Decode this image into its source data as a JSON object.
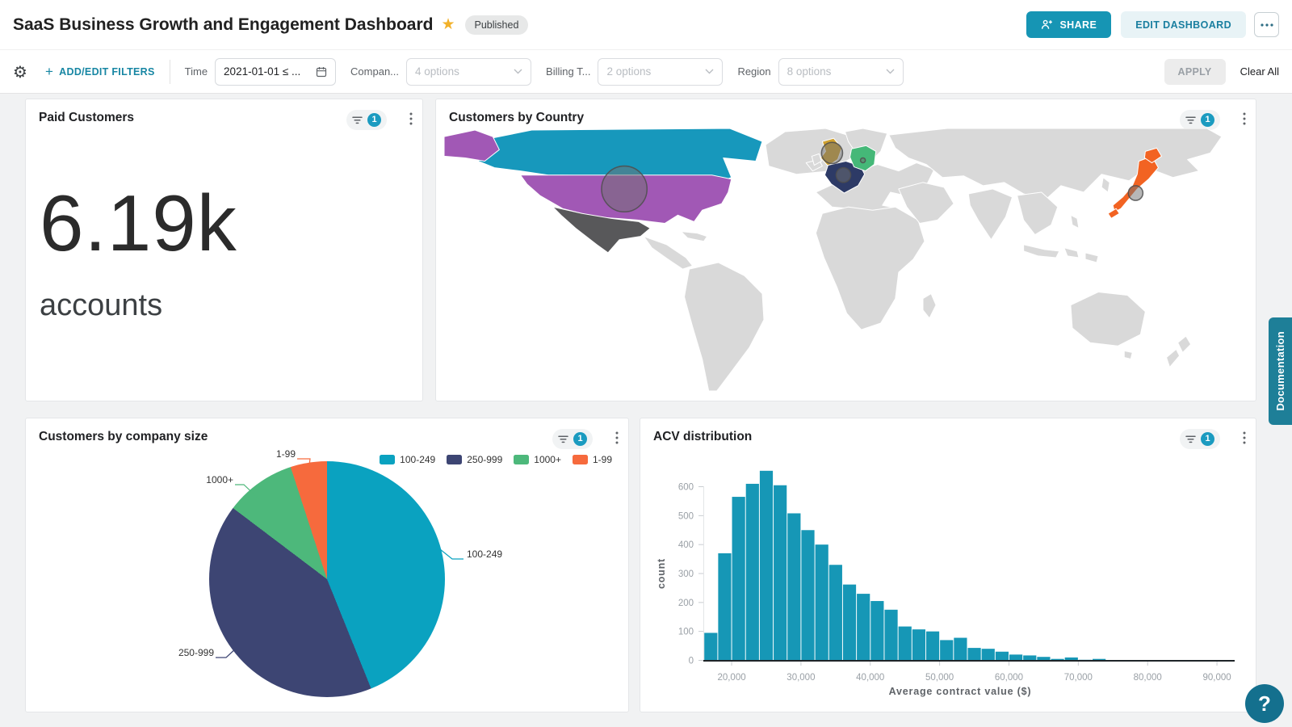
{
  "header": {
    "title": "SaaS Business Growth and Engagement Dashboard",
    "star_glyph": "★",
    "published_badge": "Published",
    "share_button": "SHARE",
    "edit_button": "EDIT DASHBOARD",
    "accent_color": "#1695b4"
  },
  "filter_bar": {
    "gear_glyph": "⚙",
    "add_edit_label": "ADD/EDIT FILTERS",
    "plus_glyph": "+",
    "time_label": "Time",
    "time_value": "2021-01-01 ≤ ...",
    "company_label": "Compan...",
    "company_value": "4 options",
    "billing_label": "Billing T...",
    "billing_value": "2 options",
    "region_label": "Region",
    "region_value": "8 options",
    "apply_label": "APPLY",
    "clear_label": "Clear All"
  },
  "cards": {
    "kpi": {
      "title": "Paid Customers",
      "filter_count": "1"
    },
    "map": {
      "title": "Customers by Country",
      "filter_count": "1"
    },
    "pie": {
      "title": "Customers by company size",
      "filter_count": "1"
    },
    "hist": {
      "title": "ACV distribution",
      "filter_count": "1"
    }
  },
  "side": {
    "documentation_label": "Documentation",
    "help_label": "?"
  },
  "chart_data": [
    {
      "id": "paid_customers",
      "type": "kpi",
      "display": "6.19k",
      "value": 6190,
      "unit": "accounts"
    },
    {
      "id": "customers_by_country",
      "type": "map",
      "title": "Customers by Country",
      "default_color": "#d9d9d9",
      "bubble_fill": "#6f6f6f",
      "bubble_opacity": 0.5,
      "bubble_stroke": "#4d4d4d",
      "countries": [
        {
          "name": "Canada",
          "color": "#1798bc"
        },
        {
          "name": "Alaska (US)",
          "color": "#a158b5"
        },
        {
          "name": "United States",
          "color": "#a158b5"
        },
        {
          "name": "Mexico",
          "color": "#58585a"
        },
        {
          "name": "United Kingdom",
          "color": "#cfa02f"
        },
        {
          "name": "France",
          "color": "#2d3a66"
        },
        {
          "name": "Germany",
          "color": "#45b878"
        },
        {
          "name": "Japan",
          "color": "#f26322"
        }
      ],
      "bubbles": [
        {
          "country": "United States",
          "r": 28
        },
        {
          "country": "United Kingdom",
          "r": 13
        },
        {
          "country": "France",
          "r": 9
        },
        {
          "country": "Germany",
          "r": 3
        },
        {
          "country": "Japan",
          "r": 9
        }
      ]
    },
    {
      "id": "customers_by_company_size",
      "type": "pie",
      "title": "Customers by company size",
      "legend_position": "top-right",
      "slices": [
        {
          "label": "100-249",
          "percent": 43.9,
          "color": "#0aa2c0"
        },
        {
          "label": "250-999",
          "percent": 41.4,
          "color": "#3d4573"
        },
        {
          "label": "1000+",
          "percent": 9.7,
          "color": "#4db87b"
        },
        {
          "label": "1-99",
          "percent": 5.0,
          "color": "#f66a3d"
        }
      ]
    },
    {
      "id": "acv_distribution",
      "type": "bar",
      "title": "ACV distribution",
      "xlabel": "Average contract value ($)",
      "ylabel": "count",
      "bar_color": "#1697b6",
      "bin_start": 16000,
      "bin_width": 2000,
      "values": [
        95,
        370,
        565,
        610,
        655,
        605,
        508,
        450,
        400,
        330,
        262,
        230,
        205,
        175,
        117,
        107,
        100,
        70,
        78,
        43,
        40,
        30,
        20,
        17,
        12,
        5,
        10,
        2,
        5
      ],
      "xlim": [
        16000,
        90500
      ],
      "ylim": [
        0,
        660
      ],
      "xticks": [
        20000,
        30000,
        40000,
        50000,
        60000,
        70000,
        80000,
        90000
      ],
      "xtick_labels": [
        "20,000",
        "30,000",
        "40,000",
        "50,000",
        "60,000",
        "70,000",
        "80,000",
        "90,000"
      ],
      "yticks": [
        0,
        100,
        200,
        300,
        400,
        500,
        600
      ],
      "grid": false
    }
  ]
}
